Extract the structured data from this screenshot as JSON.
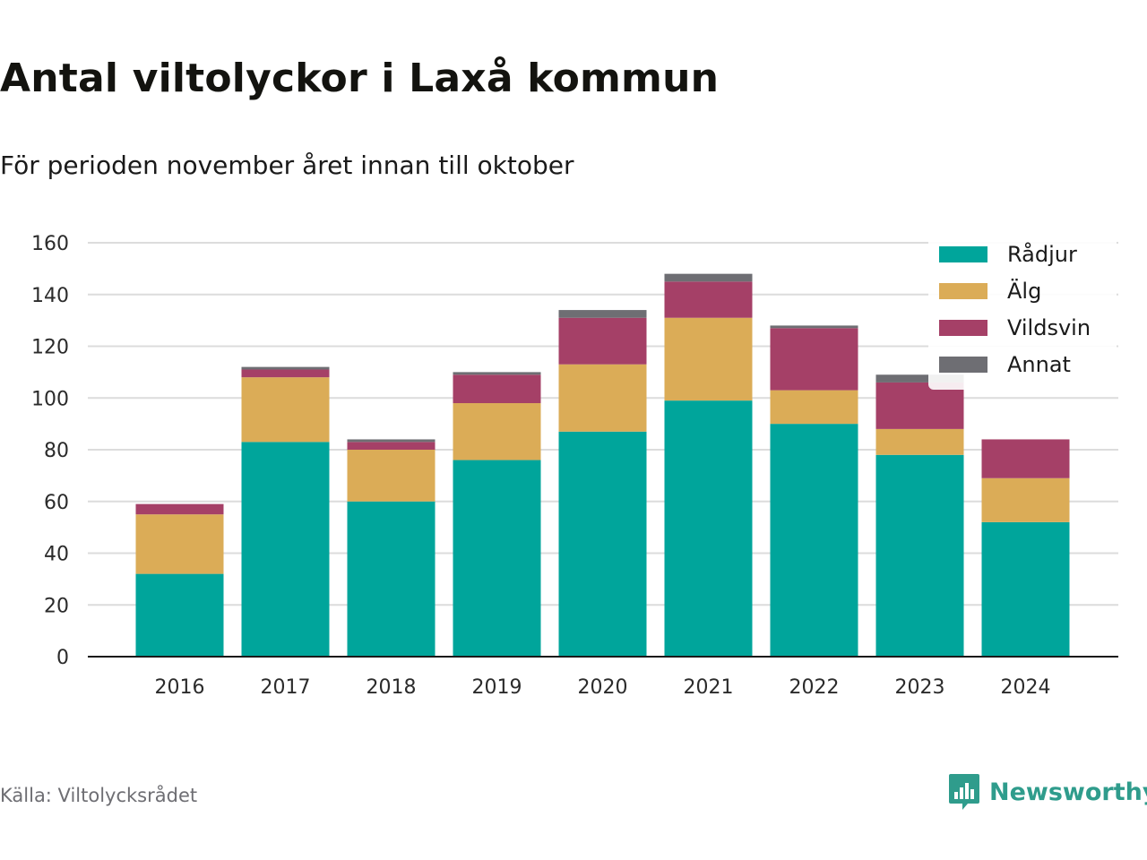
{
  "header": {
    "title": "Antal viltolyckor i Laxå kommun",
    "subtitle": "För perioden november året innan till oktober"
  },
  "footer": {
    "source": "Källa: Viltolycksrådet",
    "brand": "Newsworthy",
    "brand_icon": "bar-chart-speech-icon"
  },
  "colors": {
    "Rådjur": "#00a59b",
    "Älg": "#dbac57",
    "Vildsvin": "#a54067",
    "Annat": "#6e6e73",
    "grid": "#dcdcdc",
    "axis": "#1a1a1a",
    "brand": "#2f9c8c"
  },
  "chart_data": {
    "type": "bar",
    "stacked": true,
    "categories": [
      "2016",
      "2017",
      "2018",
      "2019",
      "2020",
      "2021",
      "2022",
      "2023",
      "2024"
    ],
    "series": [
      {
        "name": "Rådjur",
        "values": [
          32,
          83,
          60,
          76,
          87,
          99,
          90,
          78,
          52
        ]
      },
      {
        "name": "Älg",
        "values": [
          23,
          25,
          20,
          22,
          26,
          32,
          13,
          10,
          17
        ]
      },
      {
        "name": "Vildsvin",
        "values": [
          4,
          3,
          3,
          11,
          18,
          14,
          24,
          18,
          15
        ]
      },
      {
        "name": "Annat",
        "values": [
          0,
          1,
          1,
          1,
          3,
          3,
          1,
          3,
          0
        ]
      }
    ],
    "ylim": [
      0,
      160
    ],
    "yticks": [
      0,
      20,
      40,
      60,
      80,
      100,
      120,
      140,
      160
    ],
    "grid": true,
    "legend": "top-right"
  }
}
